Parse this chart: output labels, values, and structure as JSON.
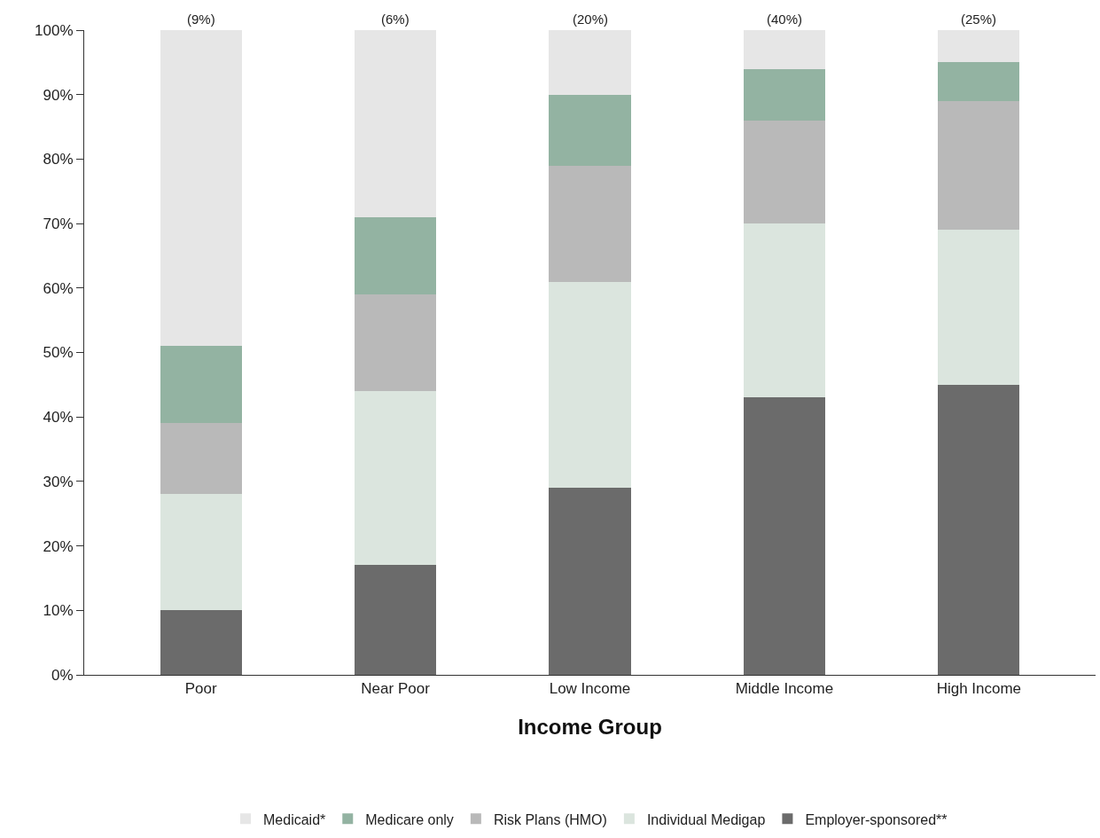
{
  "chart_data": {
    "type": "bar",
    "stacked": true,
    "xlabel": "Income Group",
    "categories": [
      "Poor",
      "Near Poor",
      "Low Income",
      "Middle Income",
      "High Income"
    ],
    "series": [
      {
        "name": "Employer-sponsored**",
        "color": "#6b6b6b",
        "values": [
          10,
          17,
          29,
          43,
          45
        ]
      },
      {
        "name": "Individual Medigap",
        "color": "#dbe5de",
        "values": [
          18,
          27,
          32,
          27,
          24
        ]
      },
      {
        "name": "Risk Plans (HMO)",
        "color": "#b9b9b9",
        "values": [
          11,
          15,
          18,
          16,
          20
        ]
      },
      {
        "name": "Medicare only",
        "color": "#93b3a2",
        "values": [
          12,
          12,
          11,
          8,
          6
        ]
      },
      {
        "name": "Medicaid*",
        "color": "#e6e6e6",
        "values": [
          49,
          29,
          10,
          6,
          5
        ]
      }
    ],
    "annotations": [
      "(9%)",
      "(6%)",
      "(20%)",
      "(40%)",
      "(25%)"
    ],
    "ylim": [
      0,
      100
    ],
    "yticks": [
      {
        "value": 0,
        "label": "0%"
      },
      {
        "value": 10,
        "label": "10%"
      },
      {
        "value": 20,
        "label": "20%"
      },
      {
        "value": 30,
        "label": "30%"
      },
      {
        "value": 40,
        "label": "40%"
      },
      {
        "value": 50,
        "label": "50%"
      },
      {
        "value": 60,
        "label": "60%"
      },
      {
        "value": 70,
        "label": "70%"
      },
      {
        "value": 80,
        "label": "80%"
      },
      {
        "value": 90,
        "label": "90%"
      },
      {
        "value": 100,
        "label": "100%"
      }
    ],
    "grid": false,
    "legend": "bottom"
  }
}
